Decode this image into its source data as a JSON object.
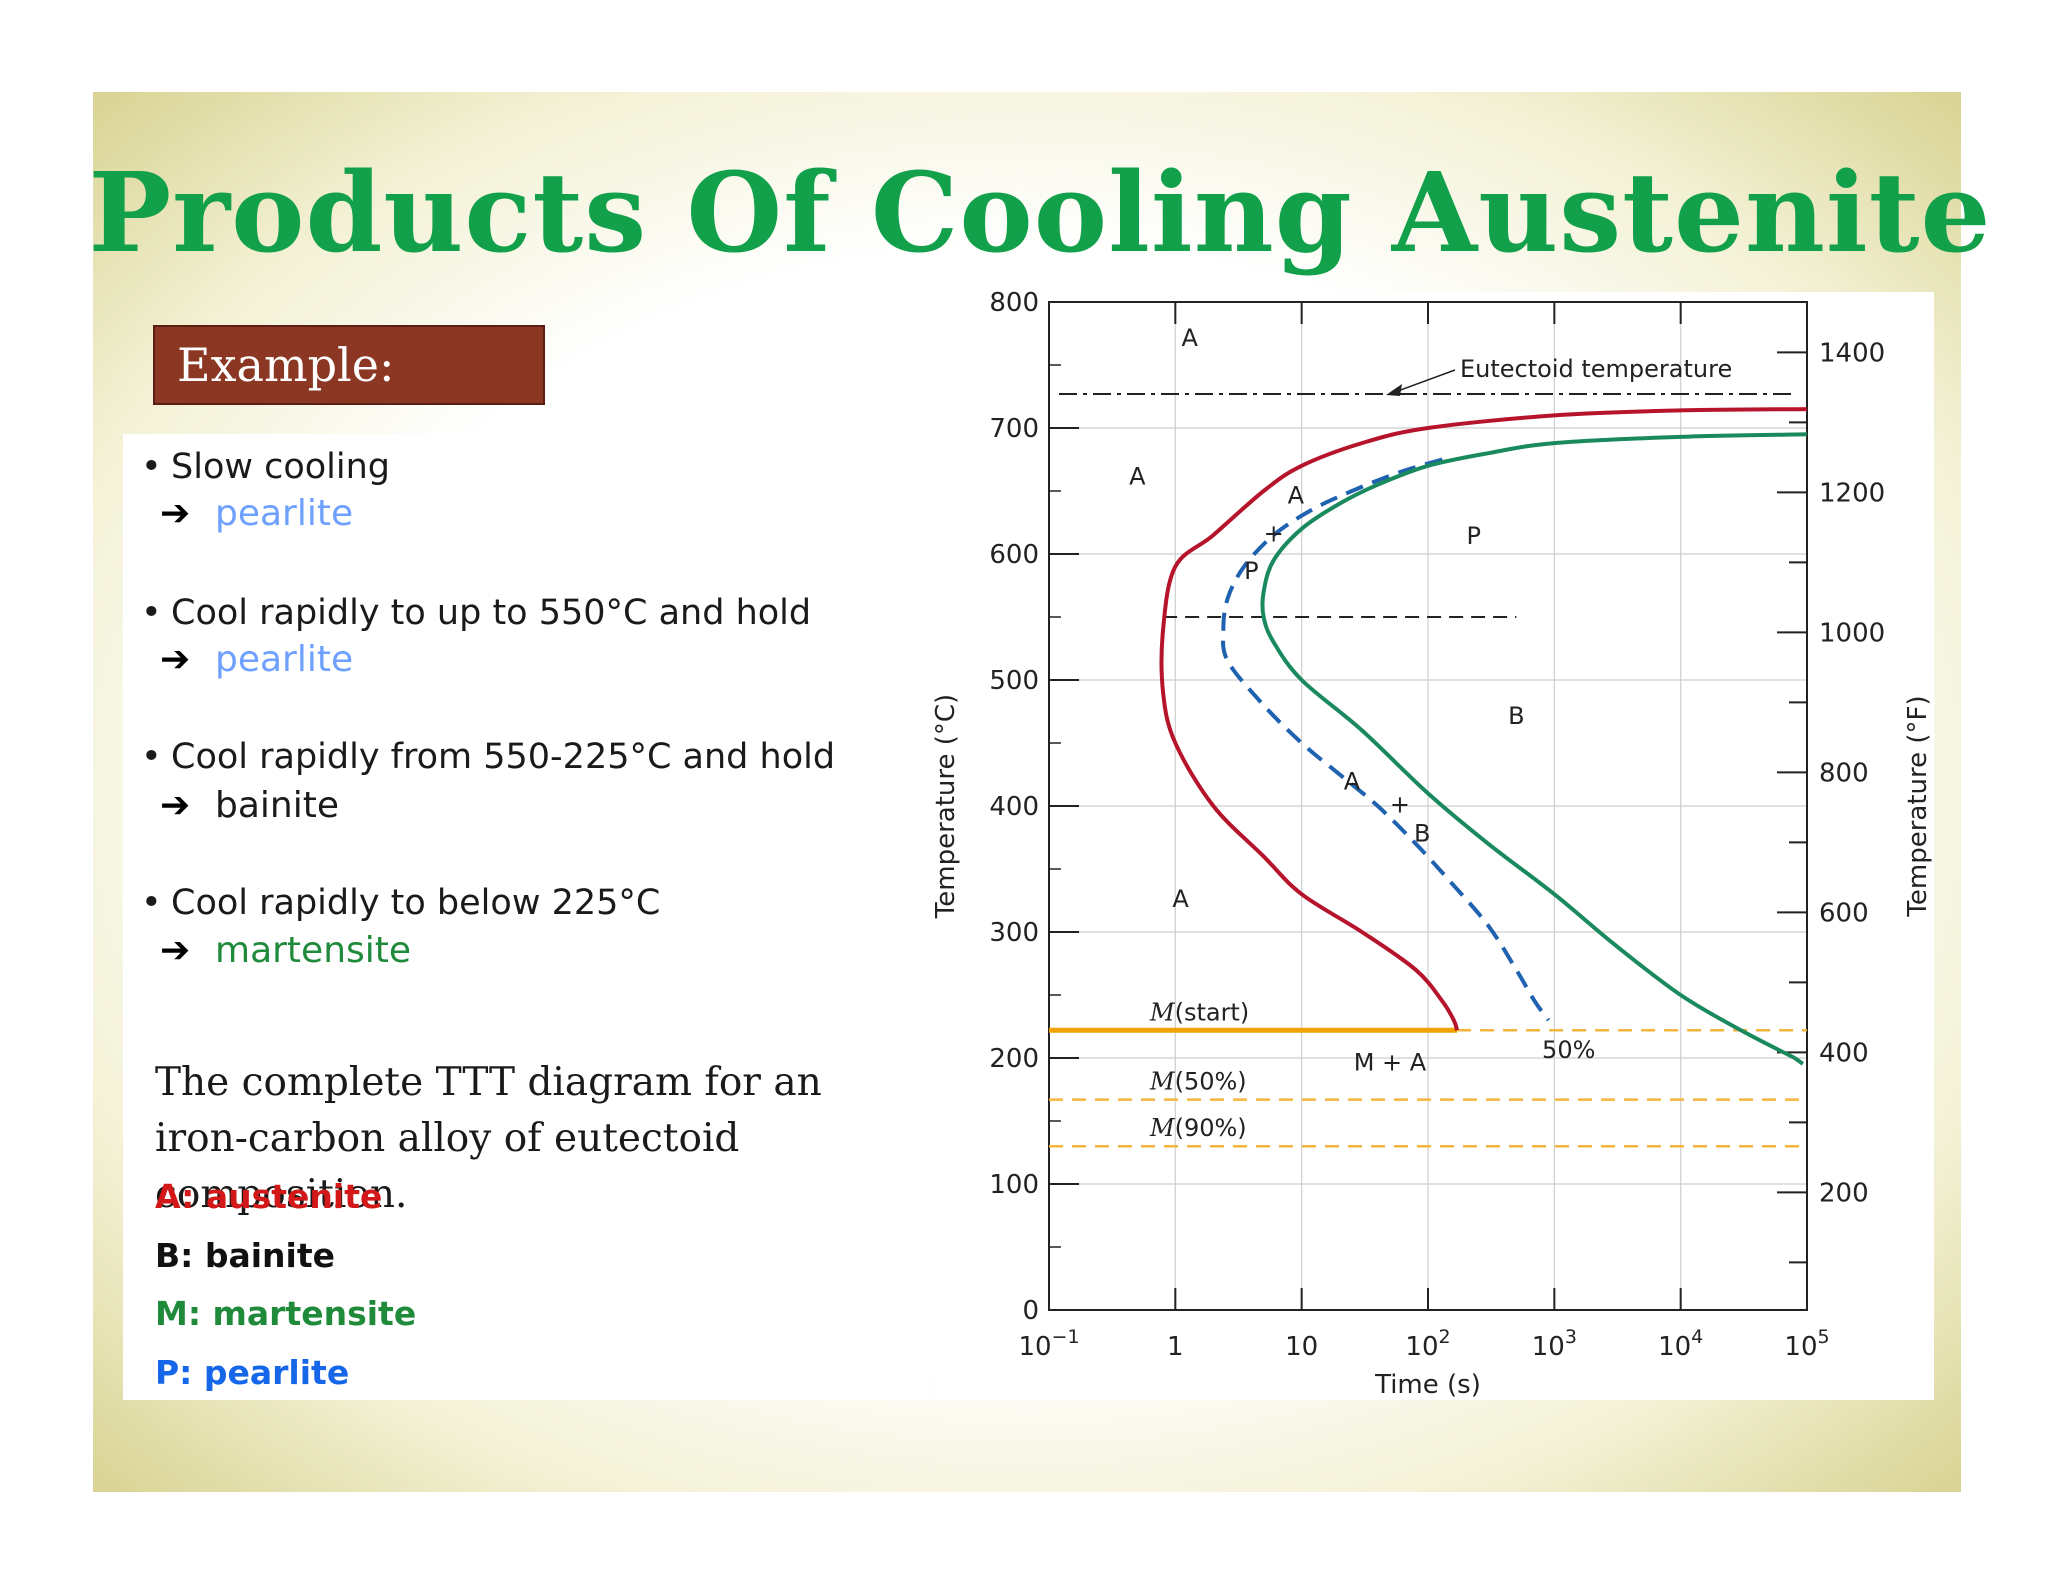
{
  "title": "Products Of Cooling Austenite",
  "example_label": "Example:",
  "cases": [
    {
      "condition": "Slow cooling",
      "product": "pearlite"
    },
    {
      "condition": "Cool rapidly to up to 550°C and hold",
      "product": "pearlite"
    },
    {
      "condition": "Cool rapidly from  550-225°C and hold",
      "product": "bainite"
    },
    {
      "condition": "Cool rapidly to below 225°C",
      "product": "martensite"
    }
  ],
  "caption": "The complete TTT diagram for an iron-carbon alloy of eutectoid composition.",
  "legend": [
    {
      "text": "A: austenite",
      "color": "#d21818"
    },
    {
      "text": "B: bainite",
      "color": "#111111"
    },
    {
      "text": "M: martensite",
      "color": "#1f8a3a"
    },
    {
      "text": "P: pearlite",
      "color": "#1566e8"
    }
  ],
  "chart_data": {
    "type": "line",
    "xlabel": "Time (s)",
    "ylabel": "Temperature (°C)",
    "y2label": "Temperature (°F)",
    "x_scale": "log",
    "xlim": [
      0.1,
      100000
    ],
    "ylim": [
      0,
      800
    ],
    "y2lim": [
      32,
      1472
    ],
    "x_ticks": [
      {
        "value": 0.1,
        "base": "10",
        "exp": "−1"
      },
      {
        "value": 1,
        "base": "1",
        "exp": ""
      },
      {
        "value": 10,
        "base": "10",
        "exp": ""
      },
      {
        "value": 100,
        "base": "10",
        "exp": "2"
      },
      {
        "value": 1000,
        "base": "10",
        "exp": "3"
      },
      {
        "value": 10000,
        "base": "10",
        "exp": "4"
      },
      {
        "value": 100000,
        "base": "10",
        "exp": "5"
      }
    ],
    "y_ticks": [
      "0",
      "100",
      "200",
      "300",
      "400",
      "500",
      "600",
      "700",
      "800"
    ],
    "y2_ticks": [
      "200",
      "400",
      "600",
      "800",
      "1000",
      "1200",
      "1400"
    ],
    "grid": true,
    "eutectoid": {
      "label": "Eutectoid temperature",
      "y": 727
    },
    "series": [
      {
        "key": "start",
        "color": "#b5142b",
        "x": [
          100000,
          10000,
          1000,
          100,
          30,
          10,
          5,
          2,
          1,
          0.8,
          0.8,
          1,
          2,
          5,
          10,
          30,
          80,
          130,
          160,
          170
        ],
        "y": [
          715,
          714,
          710,
          700,
          688,
          670,
          650,
          615,
          590,
          540,
          490,
          450,
          400,
          360,
          330,
          300,
          270,
          245,
          230,
          222
        ]
      },
      {
        "key": "fifty",
        "color": "#1f62b0",
        "x": [
          130,
          60,
          25,
          12,
          6,
          3.5,
          2.6,
          2.4,
          2.6,
          5,
          10,
          20,
          40,
          80,
          150,
          300,
          500,
          700,
          900
        ],
        "y": [
          675,
          665,
          650,
          635,
          615,
          590,
          565,
          540,
          515,
          480,
          450,
          425,
          400,
          370,
          340,
          305,
          270,
          245,
          230
        ]
      },
      {
        "key": "end",
        "color": "#1a8a5e",
        "x": [
          100000,
          10000,
          1000,
          300,
          100,
          40,
          20,
          10,
          6,
          5,
          5,
          6,
          10,
          30,
          100,
          300,
          1000,
          3000,
          10000,
          30000,
          80000
        ],
        "y": [
          695,
          693,
          688,
          680,
          670,
          655,
          640,
          620,
          595,
          570,
          550,
          530,
          500,
          460,
          410,
          370,
          330,
          290,
          250,
          222,
          200
        ]
      }
    ],
    "isotherm_550": 550,
    "m_lines": [
      {
        "label": "(start)",
        "y": 222
      },
      {
        "label": "(50%)",
        "y": 167
      },
      {
        "label": "(90%)",
        "y": 130
      }
    ],
    "annotations": [
      {
        "text": "A",
        "x": 1.3,
        "y": 765
      },
      {
        "text": "A",
        "x": 0.5,
        "y": 655
      },
      {
        "text": "P",
        "x": 230,
        "y": 608
      },
      {
        "text": "B",
        "x": 500,
        "y": 465
      },
      {
        "text": "A",
        "x": 1.1,
        "y": 320
      },
      {
        "text": "M + A",
        "x": 50,
        "y": 190
      },
      {
        "text": "50%",
        "x": 1300,
        "y": 200
      },
      {
        "text": "A",
        "x": 9,
        "y": 640
      },
      {
        "text": "+",
        "x": 6,
        "y": 610
      },
      {
        "text": "P",
        "x": 4,
        "y": 580
      },
      {
        "text": "A",
        "x": 25,
        "y": 413
      },
      {
        "text": "+",
        "x": 60,
        "y": 395
      },
      {
        "text": "B",
        "x": 90,
        "y": 372
      },
      {
        "text": "M",
        "x": 2,
        "y": 238
      }
    ]
  }
}
